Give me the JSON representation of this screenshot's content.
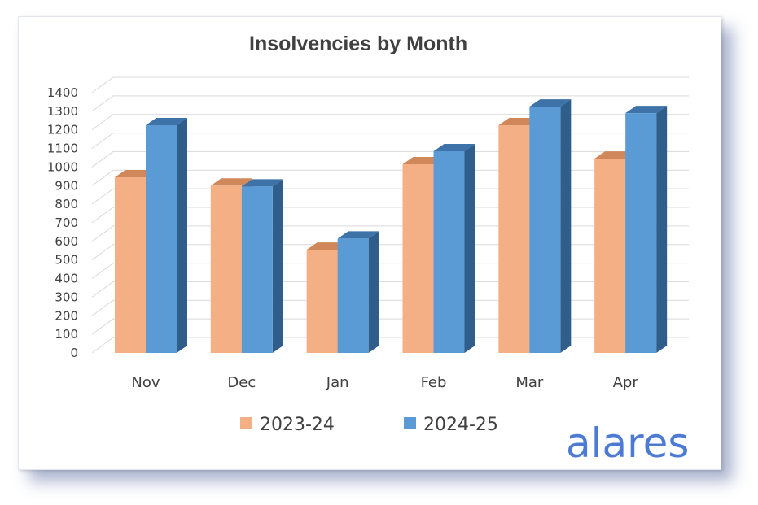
{
  "chart_data": {
    "type": "bar",
    "title": "Insolvencies by Month",
    "categories": [
      "Nov",
      "Dec",
      "Jan",
      "Feb",
      "Mar",
      "Apr"
    ],
    "series": [
      {
        "name": "2023-24",
        "values": [
          945,
          900,
          555,
          1015,
          1225,
          1045
        ],
        "color": "#f4af84",
        "side_color": "#c47a4c",
        "top_color": "#d0885a"
      },
      {
        "name": "2024-25",
        "values": [
          1225,
          895,
          615,
          1085,
          1325,
          1290
        ],
        "color": "#5b9bd5",
        "side_color": "#2f5e8b",
        "top_color": "#3d73a8"
      }
    ],
    "ylim": [
      0,
      1400
    ],
    "yticks": [
      0,
      100,
      200,
      300,
      400,
      500,
      600,
      700,
      800,
      900,
      1000,
      1100,
      1200,
      1300,
      1400
    ],
    "xlabel": "",
    "ylabel": "",
    "grid": true,
    "three_d": true,
    "legend_position": "bottom"
  },
  "branding": {
    "logo_text": "alares",
    "logo_color": "#4d7bd4"
  }
}
